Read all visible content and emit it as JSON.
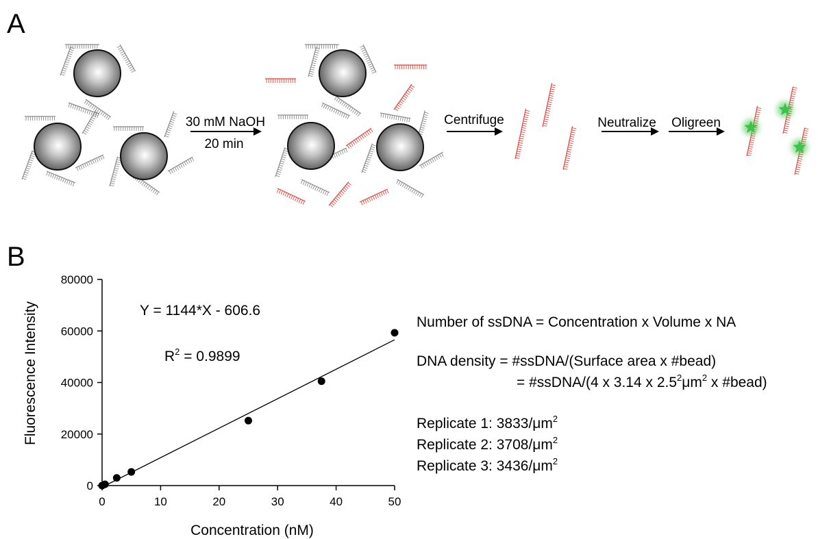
{
  "panel_a": {
    "letter": "A",
    "step1_label_top": "30 mM NaOH",
    "step1_label_bottom": "20 min",
    "step2_label": "Centrifuge",
    "step3_label": "Neutralize",
    "step4_label": "Oligreen",
    "colors": {
      "bead": "#4a4a4a",
      "strand_attached": "#8a8a8a",
      "strand_released": "#e0453f",
      "fluor": "#3cc34a"
    }
  },
  "panel_b": {
    "letter": "B",
    "fit_equation": "Y = 1144*X - 606.6",
    "r2_prefix": "R",
    "r2_sup": "2",
    "r2_value": " = 0.9899",
    "text_block": {
      "line1": "Number of ssDNA = Concentration x Volume x NA",
      "line2": "DNA density = #ssDNA/(Surface area x #bead)",
      "line3a": "= #ssDNA/(4 x 3.14 x 2.5",
      "line3_sup1": "2",
      "line3b": "μm",
      "line3_sup2": "2",
      "line3c": " x #bead)",
      "replicates": [
        {
          "label": "Replicate 1: 3833/μm",
          "sup": "2"
        },
        {
          "label": "Replicate 2: 3708/μm",
          "sup": "2"
        },
        {
          "label": "Replicate 3: 3436/μm",
          "sup": "2"
        }
      ]
    }
  },
  "chart_data": {
    "type": "scatter",
    "xlabel": "Concentration (nM)",
    "ylabel": "Fluorescence Intensity",
    "xlim": [
      0,
      50
    ],
    "ylim": [
      0,
      80000
    ],
    "xticks": [
      0,
      10,
      20,
      30,
      40,
      50
    ],
    "yticks": [
      0,
      20000,
      40000,
      60000,
      80000
    ],
    "x": [
      0,
      0.5,
      2.5,
      5,
      25,
      37.5,
      50
    ],
    "y": [
      0,
      500,
      3000,
      5300,
      25200,
      40500,
      59300
    ],
    "fit": {
      "slope": 1144,
      "intercept": -606.6,
      "x_range": [
        0,
        50
      ]
    },
    "grid": false
  }
}
